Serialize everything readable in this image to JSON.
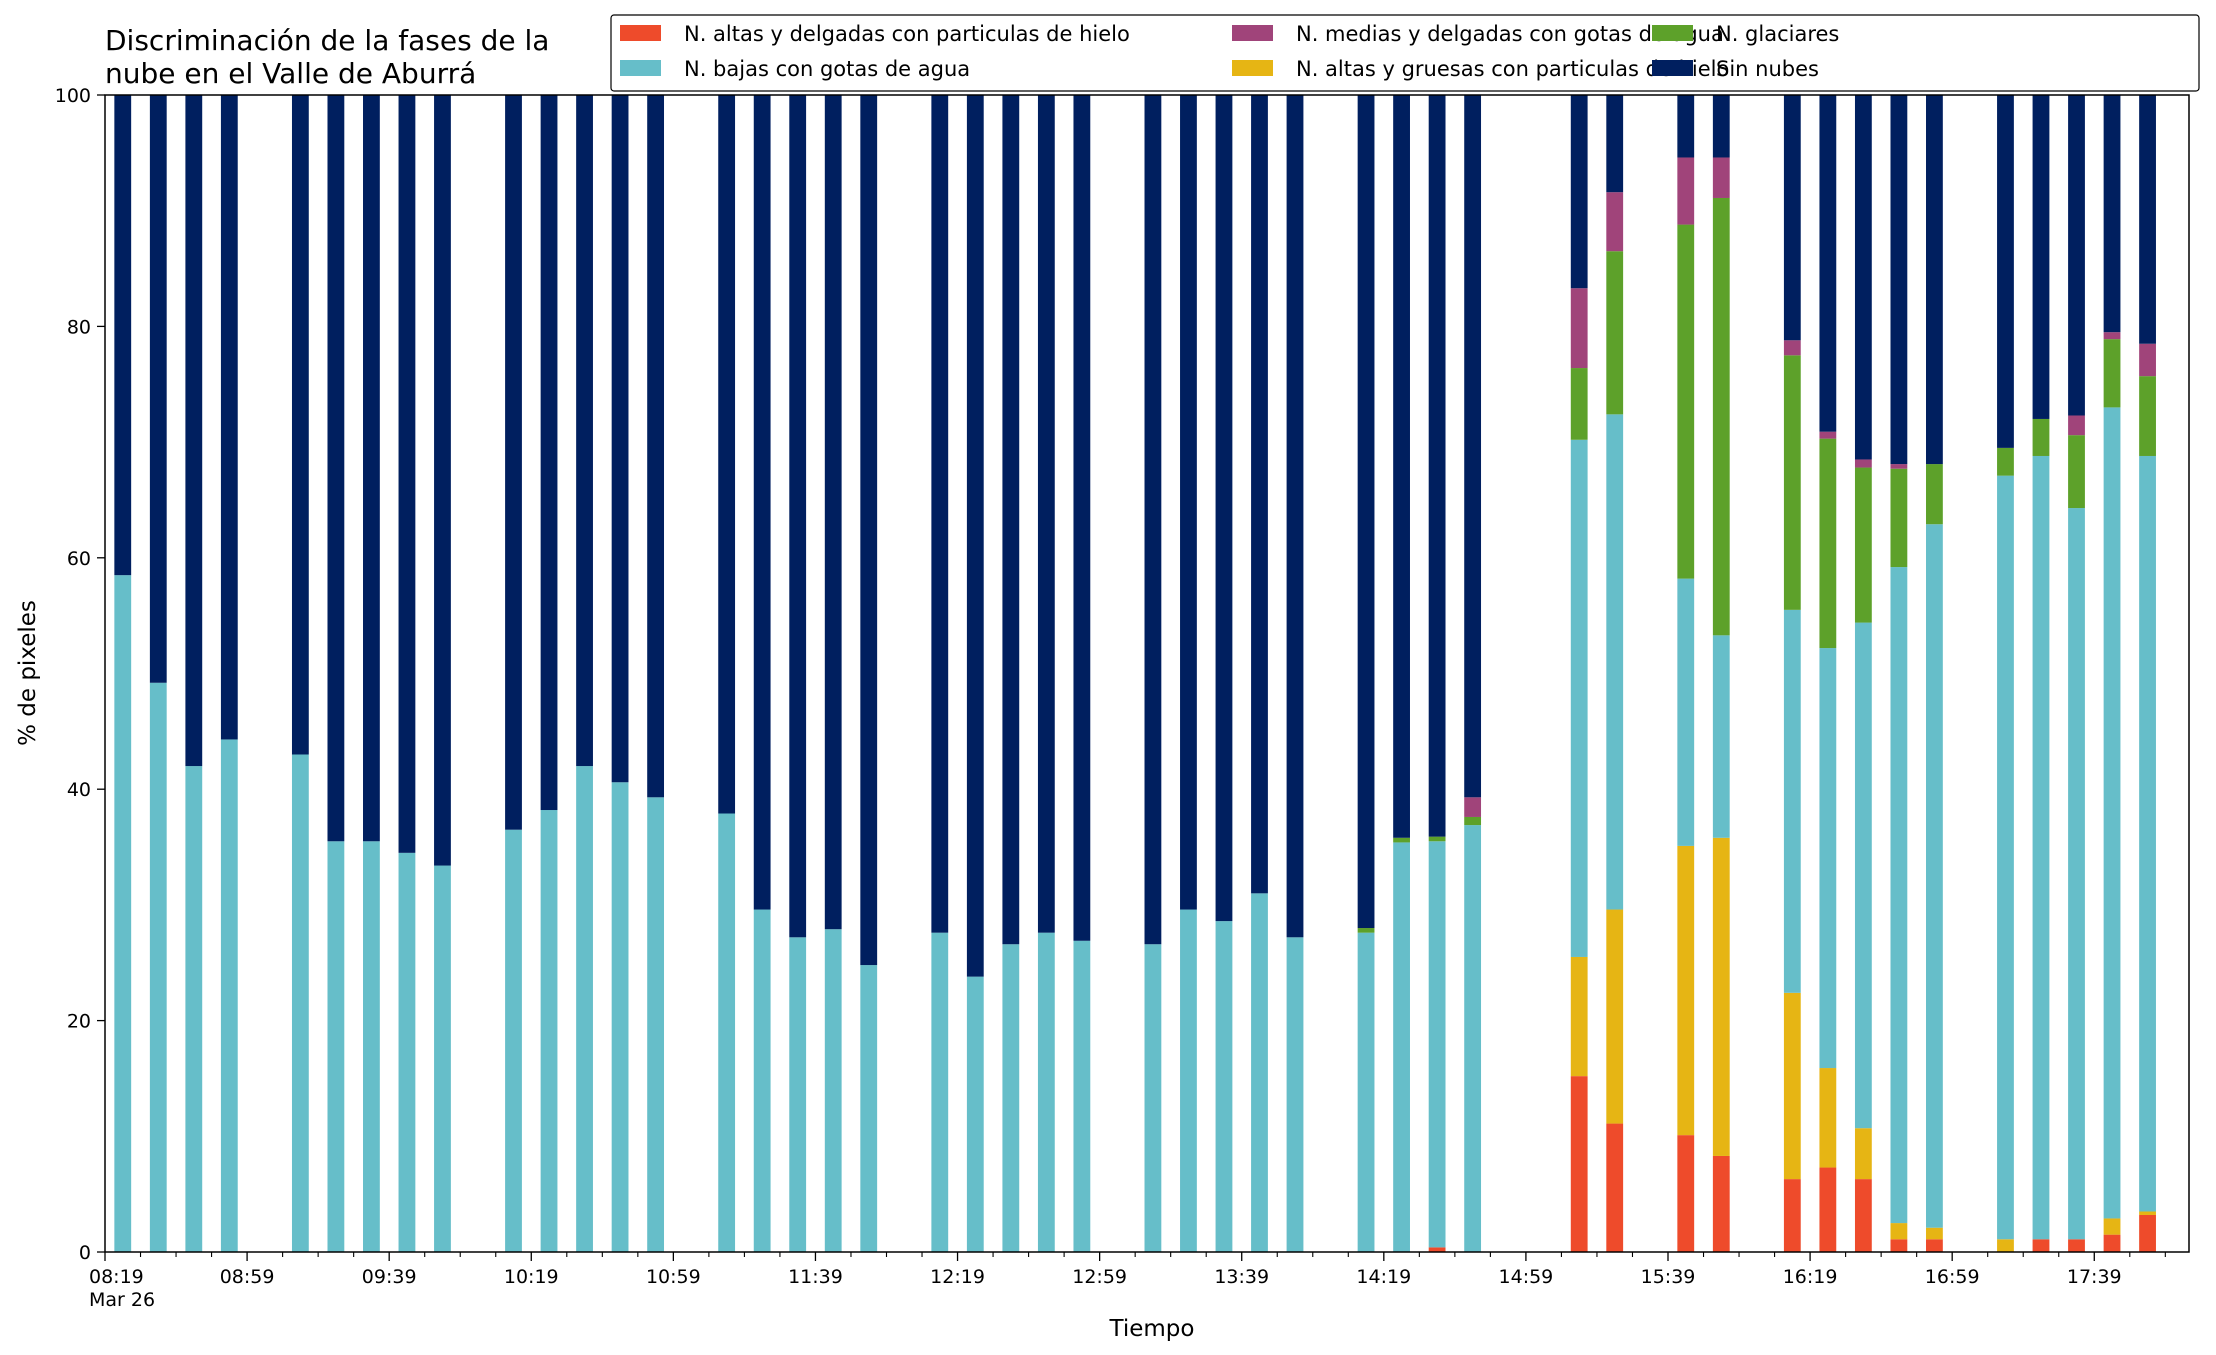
{
  "chart_data": {
    "type": "bar",
    "stacked": true,
    "title_lines": [
      "Discriminación de la fases de la",
      "nube en el Valle de Aburrá"
    ],
    "xlabel": "Tiempo",
    "ylabel": "% de pixeles",
    "ylim": [
      0,
      100
    ],
    "yticks": [
      0,
      20,
      40,
      60,
      80,
      100
    ],
    "xlim": [
      0,
      88
    ],
    "x_ticks": [
      {
        "x": 0,
        "label": "08:19",
        "sub": "Mar 26"
      },
      {
        "x": 6,
        "label": "08:59"
      },
      {
        "x": 12,
        "label": "09:39"
      },
      {
        "x": 18,
        "label": "10:19"
      },
      {
        "x": 24,
        "label": "10:59"
      },
      {
        "x": 30,
        "label": "11:39"
      },
      {
        "x": 36,
        "label": "12:19"
      },
      {
        "x": 42,
        "label": "12:59"
      },
      {
        "x": 48,
        "label": "13:39"
      },
      {
        "x": 54,
        "label": "14:19"
      },
      {
        "x": 60,
        "label": "14:59"
      },
      {
        "x": 66,
        "label": "15:39"
      },
      {
        "x": 72,
        "label": "16:19"
      },
      {
        "x": 78,
        "label": "16:59"
      },
      {
        "x": 84,
        "label": "17:39"
      }
    ],
    "x_minor_ticks": [
      1.5,
      3,
      4.5,
      7.5,
      9,
      10.5,
      13.5,
      15,
      16.5,
      19.5,
      21,
      22.5,
      25.5,
      27,
      28.5,
      31.5,
      33,
      34.5,
      37.5,
      39,
      40.5,
      43.5,
      45,
      46.5,
      49.5,
      51,
      52.5,
      55.5,
      57,
      58.5,
      61.5,
      63,
      64.5,
      67.5,
      69,
      70.5,
      73.5,
      75,
      76.5,
      79.5,
      81,
      82.5,
      85.5,
      87
    ],
    "legend_location": "upper right",
    "legend_columns": 3,
    "series": [
      {
        "name": "N. altas y delgadas con particulas de hielo",
        "color": "#ee4b2b"
      },
      {
        "name": "N. altas y gruesas con particulas de hielo",
        "color": "#e6b514"
      },
      {
        "name": "N. bajas con gotas de agua",
        "color": "#66bec9"
      },
      {
        "name": "N. glaciares",
        "color": "#5da12a"
      },
      {
        "name": "N. medias y delgadas con gotas de agua",
        "color": "#a0447a"
      },
      {
        "name": "Sin nubes",
        "color": "#001f5f"
      }
    ],
    "legend_order": [
      0,
      2,
      4,
      1,
      3,
      5
    ],
    "bars": [
      {
        "x": 0.75,
        "values": [
          0,
          0,
          58.5,
          0,
          0,
          41.5
        ]
      },
      {
        "x": 2.25,
        "values": [
          0,
          0,
          49.2,
          0,
          0,
          50.8
        ]
      },
      {
        "x": 3.75,
        "values": [
          0,
          0,
          42.0,
          0,
          0,
          58.0
        ]
      },
      {
        "x": 5.25,
        "values": [
          0,
          0,
          44.3,
          0,
          0,
          55.7
        ]
      },
      {
        "x": 8.25,
        "values": [
          0,
          0,
          43.0,
          0,
          0,
          57.0
        ]
      },
      {
        "x": 9.75,
        "values": [
          0,
          0,
          35.5,
          0,
          0,
          64.5
        ]
      },
      {
        "x": 11.25,
        "values": [
          0,
          0,
          35.5,
          0,
          0,
          64.5
        ]
      },
      {
        "x": 12.75,
        "values": [
          0,
          0,
          34.5,
          0,
          0,
          65.5
        ]
      },
      {
        "x": 14.25,
        "values": [
          0,
          0,
          33.4,
          0,
          0,
          66.6
        ]
      },
      {
        "x": 17.25,
        "values": [
          0,
          0,
          36.5,
          0,
          0,
          63.5
        ]
      },
      {
        "x": 18.75,
        "values": [
          0,
          0,
          38.2,
          0,
          0,
          61.8
        ]
      },
      {
        "x": 20.25,
        "values": [
          0,
          0,
          42.0,
          0,
          0,
          58.0
        ]
      },
      {
        "x": 21.75,
        "values": [
          0,
          0,
          40.6,
          0,
          0,
          59.4
        ]
      },
      {
        "x": 23.25,
        "values": [
          0,
          0,
          39.3,
          0,
          0,
          60.7
        ]
      },
      {
        "x": 26.25,
        "values": [
          0,
          0,
          37.9,
          0,
          0,
          62.1
        ]
      },
      {
        "x": 27.75,
        "values": [
          0,
          0,
          29.6,
          0,
          0,
          70.4
        ]
      },
      {
        "x": 29.25,
        "values": [
          0,
          0,
          27.2,
          0,
          0,
          72.8
        ]
      },
      {
        "x": 30.75,
        "values": [
          0,
          0,
          27.9,
          0,
          0,
          72.1
        ]
      },
      {
        "x": 32.25,
        "values": [
          0,
          0,
          24.8,
          0,
          0,
          75.2
        ]
      },
      {
        "x": 35.25,
        "values": [
          0,
          0,
          27.6,
          0,
          0,
          72.4
        ]
      },
      {
        "x": 36.75,
        "values": [
          0,
          0,
          23.8,
          0,
          0,
          76.2
        ]
      },
      {
        "x": 38.25,
        "values": [
          0,
          0,
          26.6,
          0,
          0,
          73.4
        ]
      },
      {
        "x": 39.75,
        "values": [
          0,
          0,
          27.6,
          0,
          0,
          72.4
        ]
      },
      {
        "x": 41.25,
        "values": [
          0,
          0,
          26.9,
          0,
          0,
          73.1
        ]
      },
      {
        "x": 44.25,
        "values": [
          0,
          0,
          26.6,
          0,
          0,
          73.4
        ]
      },
      {
        "x": 45.75,
        "values": [
          0,
          0,
          29.6,
          0,
          0,
          70.4
        ]
      },
      {
        "x": 47.25,
        "values": [
          0,
          0,
          28.6,
          0,
          0,
          71.4
        ]
      },
      {
        "x": 48.75,
        "values": [
          0,
          0,
          31.0,
          0,
          0,
          69.0
        ]
      },
      {
        "x": 50.25,
        "values": [
          0,
          0,
          27.2,
          0,
          0,
          72.8
        ]
      },
      {
        "x": 53.25,
        "values": [
          0,
          0,
          27.6,
          0.4,
          0,
          72.0
        ]
      },
      {
        "x": 54.75,
        "values": [
          0,
          0,
          35.4,
          0.4,
          0,
          64.2
        ]
      },
      {
        "x": 56.25,
        "values": [
          0.4,
          0,
          35.1,
          0.4,
          0,
          64.1
        ]
      },
      {
        "x": 57.75,
        "values": [
          0,
          0,
          36.9,
          0.7,
          1.7,
          60.7
        ]
      },
      {
        "x": 62.25,
        "values": [
          15.2,
          10.3,
          44.7,
          6.2,
          6.9,
          16.7
        ]
      },
      {
        "x": 63.75,
        "values": [
          11.1,
          18.5,
          42.8,
          14.1,
          5.1,
          8.4
        ]
      },
      {
        "x": 66.75,
        "values": [
          10.1,
          25.0,
          23.1,
          30.6,
          5.8,
          5.4
        ]
      },
      {
        "x": 68.25,
        "values": [
          8.3,
          27.5,
          17.5,
          37.8,
          3.5,
          5.4
        ]
      },
      {
        "x": 71.25,
        "values": [
          6.3,
          16.1,
          33.1,
          22.0,
          1.3,
          21.2
        ]
      },
      {
        "x": 72.75,
        "values": [
          7.3,
          8.6,
          36.3,
          18.1,
          0.6,
          29.1
        ]
      },
      {
        "x": 74.25,
        "values": [
          6.3,
          4.4,
          43.7,
          13.4,
          0.7,
          31.5
        ]
      },
      {
        "x": 75.75,
        "values": [
          1.1,
          1.4,
          56.7,
          8.5,
          0.4,
          31.9
        ]
      },
      {
        "x": 77.25,
        "values": [
          1.1,
          1.0,
          60.8,
          5.2,
          0,
          31.9
        ]
      },
      {
        "x": 80.25,
        "values": [
          0,
          1.1,
          66.0,
          2.4,
          0,
          30.5
        ]
      },
      {
        "x": 81.75,
        "values": [
          1.1,
          0,
          67.7,
          3.2,
          0,
          28.0
        ]
      },
      {
        "x": 83.25,
        "values": [
          1.1,
          0,
          63.2,
          6.3,
          1.7,
          27.7
        ]
      },
      {
        "x": 84.75,
        "values": [
          1.5,
          1.4,
          70.1,
          5.9,
          0.6,
          20.5
        ]
      },
      {
        "x": 86.25,
        "values": [
          3.2,
          0.3,
          65.3,
          6.9,
          2.8,
          21.5
        ]
      }
    ]
  }
}
